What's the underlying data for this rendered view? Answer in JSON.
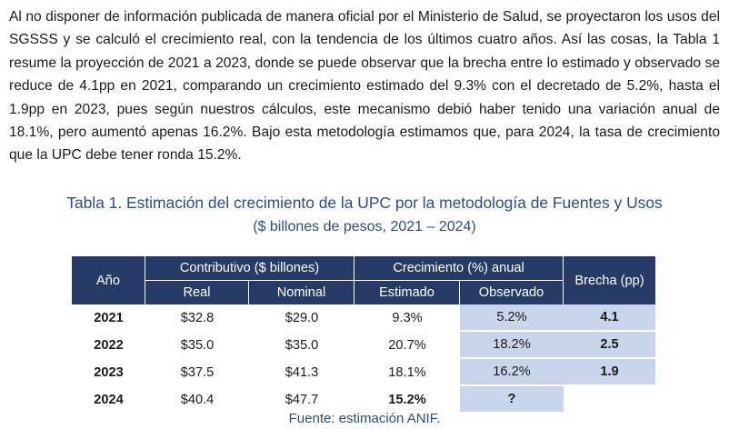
{
  "paragraph": "Al no disponer de información publicada de manera oficial por el Ministerio de Salud, se proyectaron los usos del SGSSS y se calculó el crecimiento real, con la tendencia de los últimos cuatro años. Así las cosas, la Tabla 1 resume la proyección de 2021 a 2023, donde se puede observar que la brecha entre lo estimado y observado se reduce de 4.1pp en 2021, comparando un crecimiento estimado del 9.3% con el decretado de 5.2%, hasta el 1.9pp en 2023, pues según nuestros cálculos, este mecanismo debió haber tenido una variación anual de 18.1%, pero aumentó apenas 16.2%. Bajo esta metodología estimamos que, para 2024, la tasa de crecimiento que la UPC debe tener ronda 15.2%.",
  "table_title": "Tabla 1. Estimación del crecimiento de la UPC por la metodología de Fuentes y Usos",
  "table_subtitle": "($ billones de pesos, 2021 – 2024)",
  "headers": {
    "anio": "Año",
    "contributivo": "Contributivo ($ billones)",
    "crecimiento": "Crecimiento (%) anual",
    "brecha": "Brecha (pp)",
    "real": "Real",
    "nominal": "Nominal",
    "estimado": "Estimado",
    "observado": "Observado"
  },
  "rows": [
    {
      "anio": "2021",
      "real": "$32.8",
      "nominal": "$29.0",
      "estimado": "9.3%",
      "observado": "5.2%",
      "brecha": "4.1"
    },
    {
      "anio": "2022",
      "real": "$35.0",
      "nominal": "$35.0",
      "estimado": "20.7%",
      "observado": "18.2%",
      "brecha": "2.5"
    },
    {
      "anio": "2023",
      "real": "$37.5",
      "nominal": "$41.3",
      "estimado": "18.1%",
      "observado": "16.2%",
      "brecha": "1.9"
    },
    {
      "anio": "2024",
      "real": "$40.4",
      "nominal": "$47.7",
      "estimado": "15.2%",
      "observado": "?",
      "brecha": ""
    }
  ],
  "source": {
    "label": "Fuente",
    "text": ": estimación ANIF."
  },
  "colors": {
    "header_bg": "#263c66",
    "highlight": "#c9d5ea",
    "title": "#2e4d7a"
  }
}
